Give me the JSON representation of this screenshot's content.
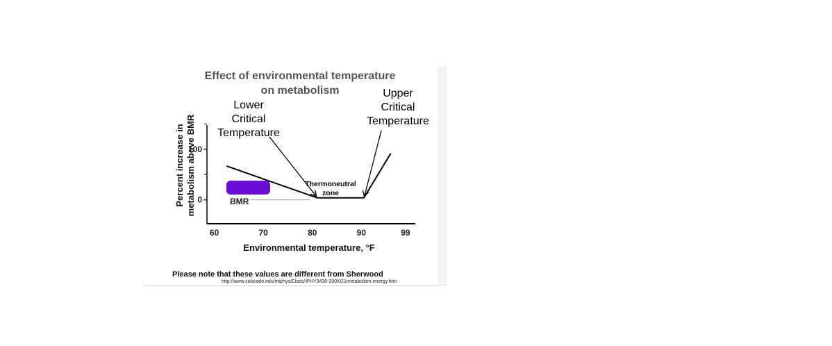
{
  "chart_data": {
    "type": "line",
    "title": "Effect of environmental temperature on metabolism",
    "title_lines": [
      "Effect of environmental temperature",
      "on metabolism"
    ],
    "xlabel": "Environmental temperature, °F",
    "ylabel": "Percent increase in metabolism above BMR",
    "ylabel_lines": [
      "Percent increase in",
      "metabolism above BMR"
    ],
    "x_ticks": [
      60,
      70,
      80,
      90,
      99
    ],
    "x_tick_labels": [
      "60",
      "70",
      "80",
      "90",
      "99"
    ],
    "highlight_tick": "99",
    "highlight_color": "#e53935",
    "y_ticks": [
      0,
      100
    ],
    "y_tick_labels": [
      "0",
      "100"
    ],
    "xlim": [
      58.5,
      101
    ],
    "ylim": [
      -47,
      200
    ],
    "series": [
      {
        "x": [
          62.5,
          81.0,
          90.5,
          96.0
        ],
        "y": [
          67,
          4,
          4,
          92
        ],
        "color": "#000000"
      }
    ],
    "bmr_line": {
      "x": [
        67.5,
        79.5
      ],
      "y": [
        0,
        0
      ],
      "label": "BMR"
    },
    "annotations": [
      {
        "lines": [
          "Lower",
          "Critical",
          "Temperature"
        ],
        "x": 81.0,
        "y": 4
      },
      {
        "lines": [
          "Upper",
          "Critical",
          "Temperature"
        ],
        "x": 90.5,
        "y": 4
      },
      {
        "lines": [
          "Thermoneutral",
          "zone"
        ]
      }
    ],
    "redaction_color": "#6a0fd8",
    "grid": false,
    "legend": "none"
  },
  "footer": {
    "note": "Please note that these values are different from Sherwood",
    "source": "http://www.colorado.edu/intphys/Class/IPHY3430-200/021metabolism-energy.htm"
  }
}
